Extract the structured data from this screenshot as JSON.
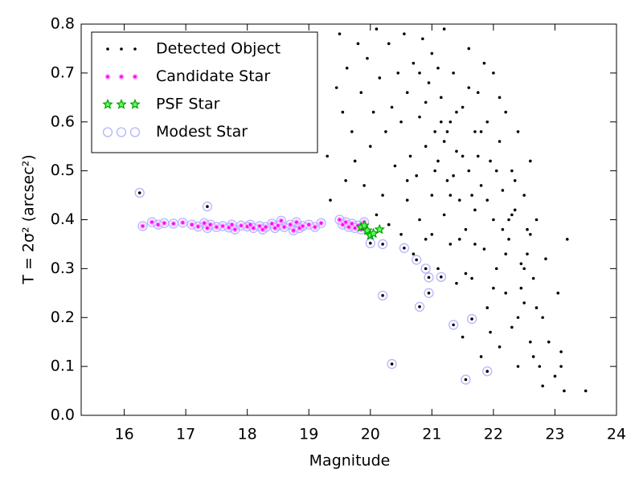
{
  "chart_data": {
    "type": "scatter",
    "x_label": "Magnitude",
    "y_label": "T = 2σ² (arcsec²)",
    "xlim": [
      15.3,
      24
    ],
    "ylim": [
      0,
      0.8
    ],
    "xticks": [
      16,
      17,
      18,
      19,
      20,
      21,
      22,
      23,
      24
    ],
    "yticks": [
      {
        "value": 0,
        "label": "0.0"
      },
      0.1,
      0.2,
      0.3,
      0.4,
      0.5,
      0.6,
      0.7,
      0.8
    ],
    "legend": "upper left",
    "series": [
      {
        "name": "Detected Object",
        "color": "#000000",
        "marker": "dot",
        "x": [
          19.3,
          19.35,
          19.45,
          19.5,
          19.55,
          19.6,
          19.62,
          19.7,
          19.75,
          19.8,
          19.85,
          19.9,
          19.95,
          20.0,
          20.05,
          20.1,
          20.1,
          20.15,
          20.2,
          20.25,
          20.3,
          20.3,
          20.35,
          20.4,
          20.45,
          20.5,
          20.5,
          20.55,
          20.6,
          20.6,
          20.65,
          20.7,
          20.7,
          20.75,
          20.8,
          20.8,
          20.85,
          20.9,
          20.9,
          20.95,
          21.0,
          21.0,
          21.05,
          21.1,
          21.1,
          21.15,
          21.2,
          21.2,
          21.25,
          21.3,
          21.3,
          21.35,
          21.4,
          21.4,
          21.45,
          21.5,
          21.5,
          21.55,
          21.6,
          21.6,
          21.65,
          21.7,
          21.7,
          21.75,
          21.8,
          21.8,
          21.85,
          21.9,
          21.9,
          21.95,
          22.0,
          22.0,
          22.05,
          22.1,
          22.1,
          22.15,
          22.2,
          22.2,
          22.25,
          22.3,
          22.3,
          22.35,
          22.4,
          22.4,
          22.45,
          22.5,
          22.5,
          22.55,
          22.6,
          22.6,
          22.65,
          22.7,
          22.75,
          22.8,
          22.85,
          22.9,
          23.0,
          23.05,
          23.1,
          23.15,
          23.2,
          23.5,
          16.25,
          17.35,
          20.0,
          20.2,
          20.55,
          20.75,
          20.9,
          20.95,
          21.15,
          20.2,
          20.95,
          20.8,
          21.35,
          21.65,
          20.35,
          21.55,
          21.9,
          20.6,
          20.9,
          21.0,
          21.1,
          21.2,
          21.3,
          21.4,
          21.5,
          21.6,
          21.7,
          21.8,
          21.9,
          22.0,
          22.1,
          22.2,
          22.3,
          22.4,
          22.5,
          22.6,
          22.7,
          20.8,
          21.05,
          21.25,
          21.45,
          21.65,
          21.85,
          22.05,
          22.25,
          22.45,
          22.65,
          21.15,
          21.35,
          21.55,
          21.75,
          21.95,
          22.15,
          22.35,
          22.55,
          22.8,
          23.1
        ],
        "values": [
          0.53,
          0.44,
          0.67,
          0.78,
          0.62,
          0.48,
          0.71,
          0.58,
          0.52,
          0.76,
          0.66,
          0.47,
          0.73,
          0.55,
          0.62,
          0.79,
          0.41,
          0.69,
          0.45,
          0.58,
          0.39,
          0.76,
          0.63,
          0.51,
          0.7,
          0.37,
          0.6,
          0.78,
          0.44,
          0.66,
          0.53,
          0.33,
          0.72,
          0.49,
          0.61,
          0.4,
          0.77,
          0.55,
          0.36,
          0.68,
          0.45,
          0.74,
          0.58,
          0.3,
          0.52,
          0.65,
          0.41,
          0.79,
          0.48,
          0.35,
          0.6,
          0.7,
          0.27,
          0.54,
          0.44,
          0.63,
          0.16,
          0.38,
          0.75,
          0.5,
          0.28,
          0.58,
          0.42,
          0.66,
          0.12,
          0.47,
          0.34,
          0.6,
          0.22,
          0.52,
          0.7,
          0.4,
          0.3,
          0.56,
          0.14,
          0.46,
          0.62,
          0.25,
          0.36,
          0.5,
          0.18,
          0.42,
          0.58,
          0.1,
          0.31,
          0.45,
          0.23,
          0.38,
          0.15,
          0.52,
          0.28,
          0.4,
          0.1,
          0.2,
          0.32,
          0.15,
          0.08,
          0.25,
          0.13,
          0.05,
          0.36,
          0.05,
          0.455,
          0.427,
          0.352,
          0.35,
          0.342,
          0.318,
          0.3,
          0.282,
          0.283,
          0.245,
          0.25,
          0.222,
          0.185,
          0.197,
          0.105,
          0.073,
          0.09,
          0.48,
          0.64,
          0.37,
          0.71,
          0.56,
          0.45,
          0.62,
          0.53,
          0.67,
          0.35,
          0.58,
          0.44,
          0.26,
          0.65,
          0.33,
          0.41,
          0.2,
          0.3,
          0.37,
          0.22,
          0.7,
          0.5,
          0.58,
          0.36,
          0.45,
          0.72,
          0.5,
          0.4,
          0.26,
          0.12,
          0.6,
          0.49,
          0.29,
          0.53,
          0.17,
          0.38,
          0.48,
          0.33,
          0.06,
          0.1
        ]
      },
      {
        "name": "Candidate Star",
        "color": "#ff00ff",
        "marker": "small-circle",
        "x": [
          16.3,
          16.45,
          16.55,
          16.65,
          16.8,
          16.95,
          17.1,
          17.2,
          17.3,
          17.35,
          17.4,
          17.5,
          17.6,
          17.7,
          17.75,
          17.8,
          17.9,
          18.0,
          18.05,
          18.1,
          18.2,
          18.25,
          18.3,
          18.4,
          18.45,
          18.5,
          18.55,
          18.6,
          18.7,
          18.75,
          18.8,
          18.85,
          18.9,
          19.0,
          19.1,
          19.2,
          19.5,
          19.55,
          19.6,
          19.65,
          19.7,
          19.75,
          19.8,
          19.85,
          19.9
        ],
        "values": [
          0.387,
          0.395,
          0.39,
          0.393,
          0.392,
          0.394,
          0.39,
          0.386,
          0.393,
          0.383,
          0.39,
          0.385,
          0.387,
          0.384,
          0.39,
          0.38,
          0.388,
          0.386,
          0.39,
          0.383,
          0.387,
          0.38,
          0.385,
          0.392,
          0.383,
          0.388,
          0.398,
          0.385,
          0.39,
          0.378,
          0.395,
          0.383,
          0.387,
          0.39,
          0.385,
          0.393,
          0.4,
          0.39,
          0.395,
          0.385,
          0.392,
          0.383,
          0.388,
          0.38,
          0.395
        ]
      },
      {
        "name": "PSF Star",
        "color": "#00a000",
        "marker": "star",
        "x": [
          19.85,
          19.9,
          19.95,
          20.0,
          20.05,
          20.15
        ],
        "values": [
          0.385,
          0.388,
          0.378,
          0.368,
          0.372,
          0.38
        ]
      },
      {
        "name": "Modest Star",
        "color": "#b4b4ff",
        "marker": "ring",
        "x": [
          16.3,
          16.45,
          16.55,
          16.65,
          16.8,
          16.95,
          17.1,
          17.2,
          17.3,
          17.35,
          17.4,
          17.5,
          17.6,
          17.7,
          17.75,
          17.8,
          17.9,
          18.0,
          18.05,
          18.1,
          18.2,
          18.25,
          18.3,
          18.4,
          18.45,
          18.5,
          18.55,
          18.6,
          18.7,
          18.75,
          18.8,
          18.85,
          18.9,
          19.0,
          19.1,
          19.2,
          19.5,
          19.55,
          19.6,
          19.65,
          19.7,
          19.75,
          19.8,
          19.85,
          19.9,
          16.25,
          17.35,
          20.0,
          20.2,
          20.55,
          20.75,
          20.9,
          20.95,
          21.15,
          20.2,
          20.95,
          20.8,
          21.35,
          21.65,
          20.35,
          21.55,
          21.9
        ],
        "values": [
          0.387,
          0.395,
          0.39,
          0.393,
          0.392,
          0.394,
          0.39,
          0.386,
          0.393,
          0.383,
          0.39,
          0.385,
          0.387,
          0.384,
          0.39,
          0.38,
          0.388,
          0.386,
          0.39,
          0.383,
          0.387,
          0.38,
          0.385,
          0.392,
          0.383,
          0.388,
          0.398,
          0.385,
          0.39,
          0.378,
          0.395,
          0.383,
          0.387,
          0.39,
          0.385,
          0.393,
          0.4,
          0.39,
          0.395,
          0.385,
          0.392,
          0.383,
          0.388,
          0.38,
          0.395,
          0.455,
          0.427,
          0.352,
          0.35,
          0.342,
          0.318,
          0.3,
          0.282,
          0.283,
          0.245,
          0.25,
          0.222,
          0.185,
          0.197,
          0.105,
          0.073,
          0.09
        ]
      }
    ]
  }
}
